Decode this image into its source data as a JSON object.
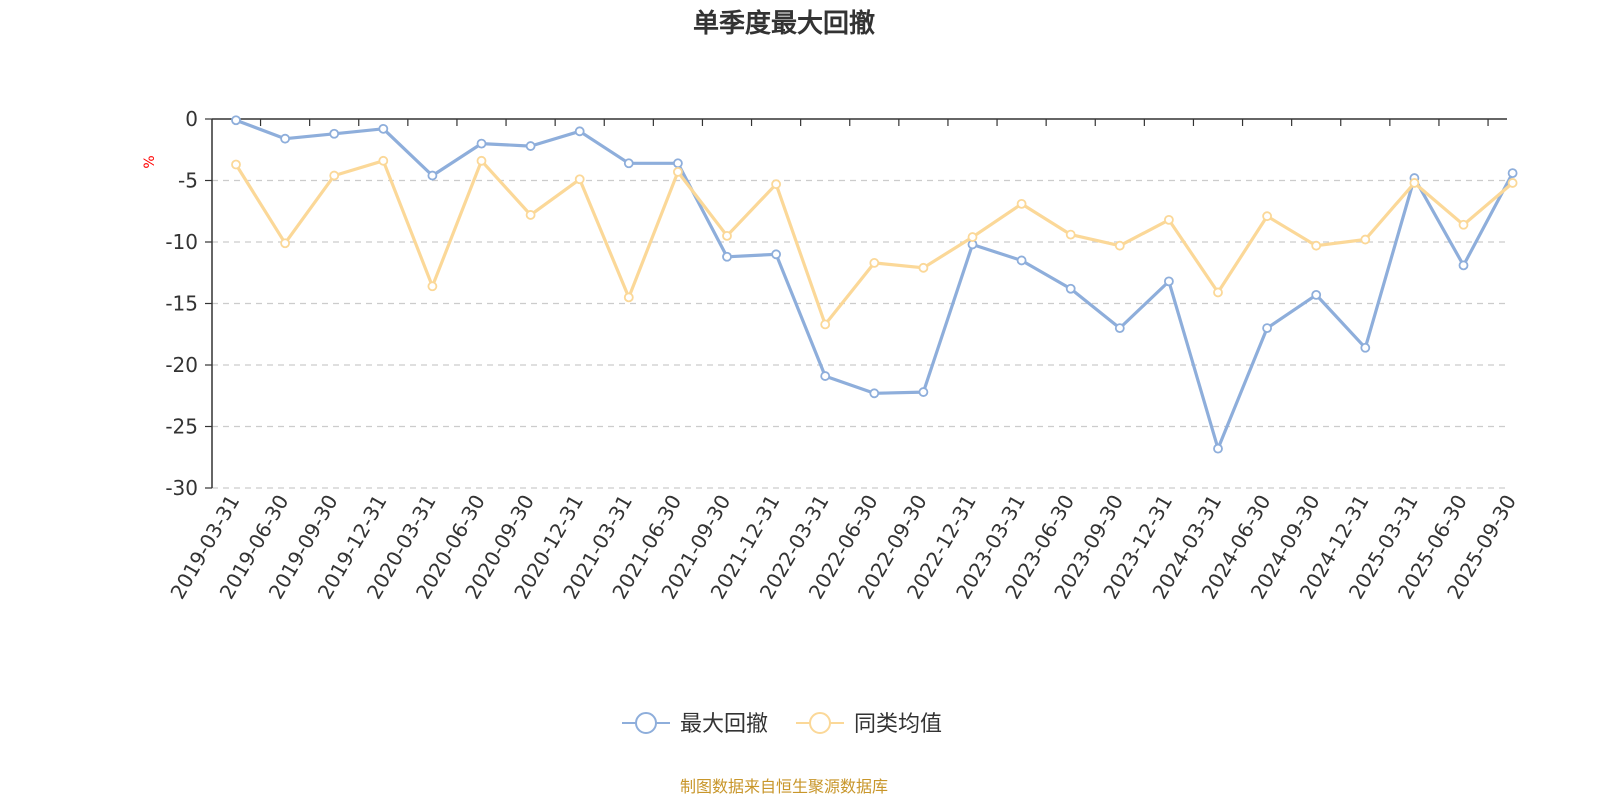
{
  "chart_data": {
    "type": "line",
    "title": "单季度最大回撤",
    "ylabel": "%",
    "ylim": [
      -30,
      0
    ],
    "yticks": [
      0,
      -5,
      -10,
      -15,
      -20,
      -25,
      -30
    ],
    "grid": true,
    "legend_position": "bottom",
    "categories": [
      "2019-03-31",
      "2019-06-30",
      "2019-09-30",
      "2019-12-31",
      "2020-03-31",
      "2020-06-30",
      "2020-09-30",
      "2020-12-31",
      "2021-03-31",
      "2021-06-30",
      "2021-09-30",
      "2021-12-31",
      "2022-03-31",
      "2022-06-30",
      "2022-09-30",
      "2022-12-31",
      "2023-03-31",
      "2023-06-30",
      "2023-09-30",
      "2023-12-31",
      "2024-03-31",
      "2024-06-30",
      "2024-09-30",
      "2024-12-31",
      "2025-03-31",
      "2025-06-30",
      "2025-09-30"
    ],
    "series": [
      {
        "name": "最大回撤",
        "color": "#8eaedb",
        "values": [
          -0.1,
          -1.6,
          -1.2,
          -0.8,
          -4.6,
          -2.0,
          -2.2,
          -1.0,
          -3.6,
          -3.6,
          -11.2,
          -11.0,
          -20.9,
          -22.3,
          -22.2,
          -10.2,
          -11.5,
          -13.8,
          -17.0,
          -13.2,
          -26.8,
          -17.0,
          -14.3,
          -18.6,
          -4.8,
          -11.9,
          -4.4
        ]
      },
      {
        "name": "同类均值",
        "color": "#fbd898",
        "values": [
          -3.7,
          -10.1,
          -4.6,
          -3.4,
          -13.6,
          -3.4,
          -7.8,
          -4.9,
          -14.5,
          -4.3,
          -9.5,
          -5.3,
          -16.7,
          -11.7,
          -12.1,
          -9.6,
          -6.9,
          -9.4,
          -10.3,
          -8.2,
          -14.1,
          -7.9,
          -10.3,
          -9.8,
          -5.2,
          -8.6,
          -5.2
        ]
      }
    ]
  },
  "source_text": "制图数据来自恒生聚源数据库",
  "colors": {
    "title": "#333333",
    "axis": "#333333",
    "grid": "#cccccc",
    "ylabel": "#ff0000",
    "source": "#c8962a"
  }
}
